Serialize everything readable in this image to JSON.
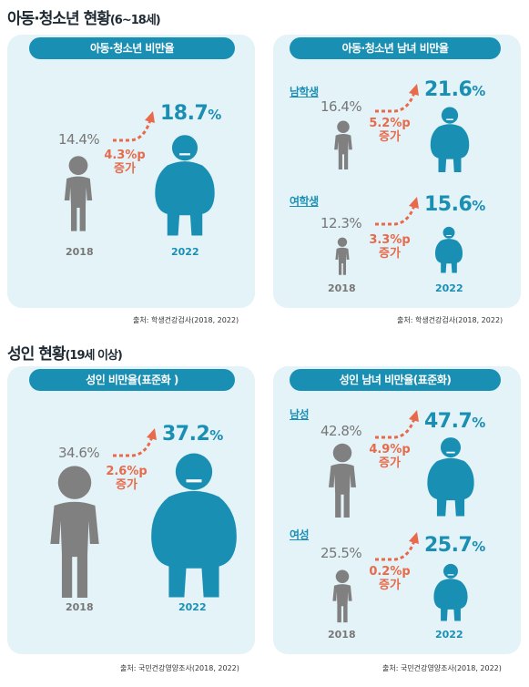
{
  "sections": {
    "youth": {
      "title": "아동·청소년 현황",
      "title_sub": "(6~18세)"
    },
    "adult": {
      "title": "성인 현황",
      "title_sub": "(19세 이상)"
    }
  },
  "youth_total": {
    "header": "아동·청소년 비만율",
    "old_value": "14.4%",
    "new_value": "18.7",
    "new_unit": "%",
    "delta_value": "4.3%p",
    "delta_label": "증가",
    "year_old": "2018",
    "year_new": "2022"
  },
  "youth_gender": {
    "header": "아동·청소년 남녀 비만율",
    "boys": {
      "label": "남학생",
      "old_value": "16.4%",
      "new_value": "21.6",
      "new_unit": "%",
      "delta_value": "5.2%p",
      "delta_label": "증가"
    },
    "girls": {
      "label": "여학생",
      "old_value": "12.3%",
      "new_value": "15.6",
      "new_unit": "%",
      "delta_value": "3.3%p",
      "delta_label": "증가",
      "year_old": "2018",
      "year_new": "2022"
    }
  },
  "youth_source": "출처: 학생건강검사(2018, 2022)",
  "adult_total": {
    "header": "성인 비만율(표준화 )",
    "old_value": "34.6%",
    "new_value": "37.2",
    "new_unit": "%",
    "delta_value": "2.6%p",
    "delta_label": "증가",
    "year_old": "2018",
    "year_new": "2022"
  },
  "adult_gender": {
    "header": "성인 남녀 비만율(표준화)",
    "men": {
      "label": "남성",
      "old_value": "42.8%",
      "new_value": "47.7",
      "new_unit": "%",
      "delta_value": "4.9%p",
      "delta_label": "증가"
    },
    "women": {
      "label": "여성",
      "old_value": "25.5%",
      "new_value": "25.7",
      "new_unit": "%",
      "delta_value": "0.2%p",
      "delta_label": "증가",
      "year_old": "2018",
      "year_new": "2022"
    }
  },
  "adult_source": "출처: 국민건강영양조사(2018, 2022)",
  "colors": {
    "accent": "#1a8fb4",
    "delta": "#e86a4a",
    "gray": "#808080",
    "panel": "#e4f3f8"
  }
}
